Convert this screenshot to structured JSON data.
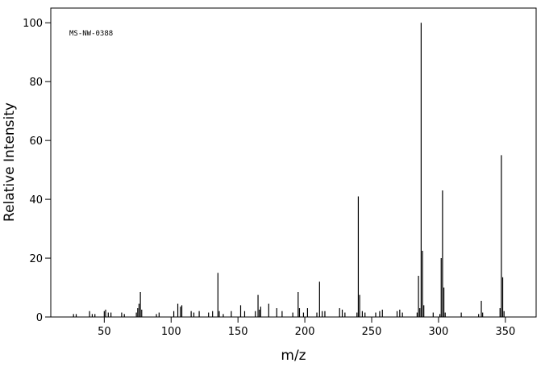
{
  "chart_data": {
    "type": "stem",
    "annotation": "MS-NW-0388",
    "xlabel": "m/z",
    "ylabel": "Relative Intensity",
    "color": "#000000",
    "x": [
      27,
      29,
      39,
      41,
      43,
      50,
      51,
      53,
      55,
      63,
      65,
      74,
      75,
      76,
      77,
      78,
      89,
      91,
      102,
      105,
      107,
      108,
      115,
      117,
      121,
      128,
      131,
      135,
      136,
      139,
      145,
      152,
      155,
      163,
      165,
      166,
      167,
      173,
      179,
      183,
      191,
      195,
      196,
      199,
      202,
      209,
      211,
      213,
      215,
      226,
      228,
      230,
      239,
      240,
      241,
      243,
      245,
      253,
      256,
      258,
      269,
      271,
      273,
      284,
      285,
      286,
      287,
      288,
      289,
      296,
      301,
      302,
      303,
      304,
      305,
      317,
      330,
      332,
      333,
      346,
      347,
      348,
      349
    ],
    "values": [
      1,
      1,
      2,
      1,
      1,
      2,
      2.5,
      1.5,
      1.5,
      1.5,
      1,
      1.5,
      3,
      4.5,
      8.5,
      2.5,
      1,
      1.5,
      2,
      4.5,
      3.5,
      4,
      2,
      1.5,
      2,
      1.5,
      2,
      15,
      2,
      1,
      2,
      4,
      2,
      2,
      7.5,
      2.5,
      3.5,
      4.5,
      3,
      2,
      1.5,
      8.5,
      3,
      1.5,
      3,
      1.5,
      12,
      2,
      2,
      3,
      2.5,
      1.5,
      1.5,
      41,
      7.5,
      2,
      1.5,
      1.5,
      2,
      2.5,
      2,
      2.5,
      1.5,
      1.5,
      14,
      3,
      100,
      22.5,
      4,
      1.5,
      1,
      20,
      43,
      10,
      1.5,
      1.5,
      1,
      5.5,
      1.5,
      3,
      55,
      13.5,
      2
    ],
    "xlim": [
      10,
      373
    ],
    "ylim": [
      0,
      105
    ],
    "xticks": [
      50,
      100,
      150,
      200,
      250,
      300,
      350
    ],
    "yticks": [
      0,
      20,
      40,
      60,
      80,
      100
    ]
  }
}
